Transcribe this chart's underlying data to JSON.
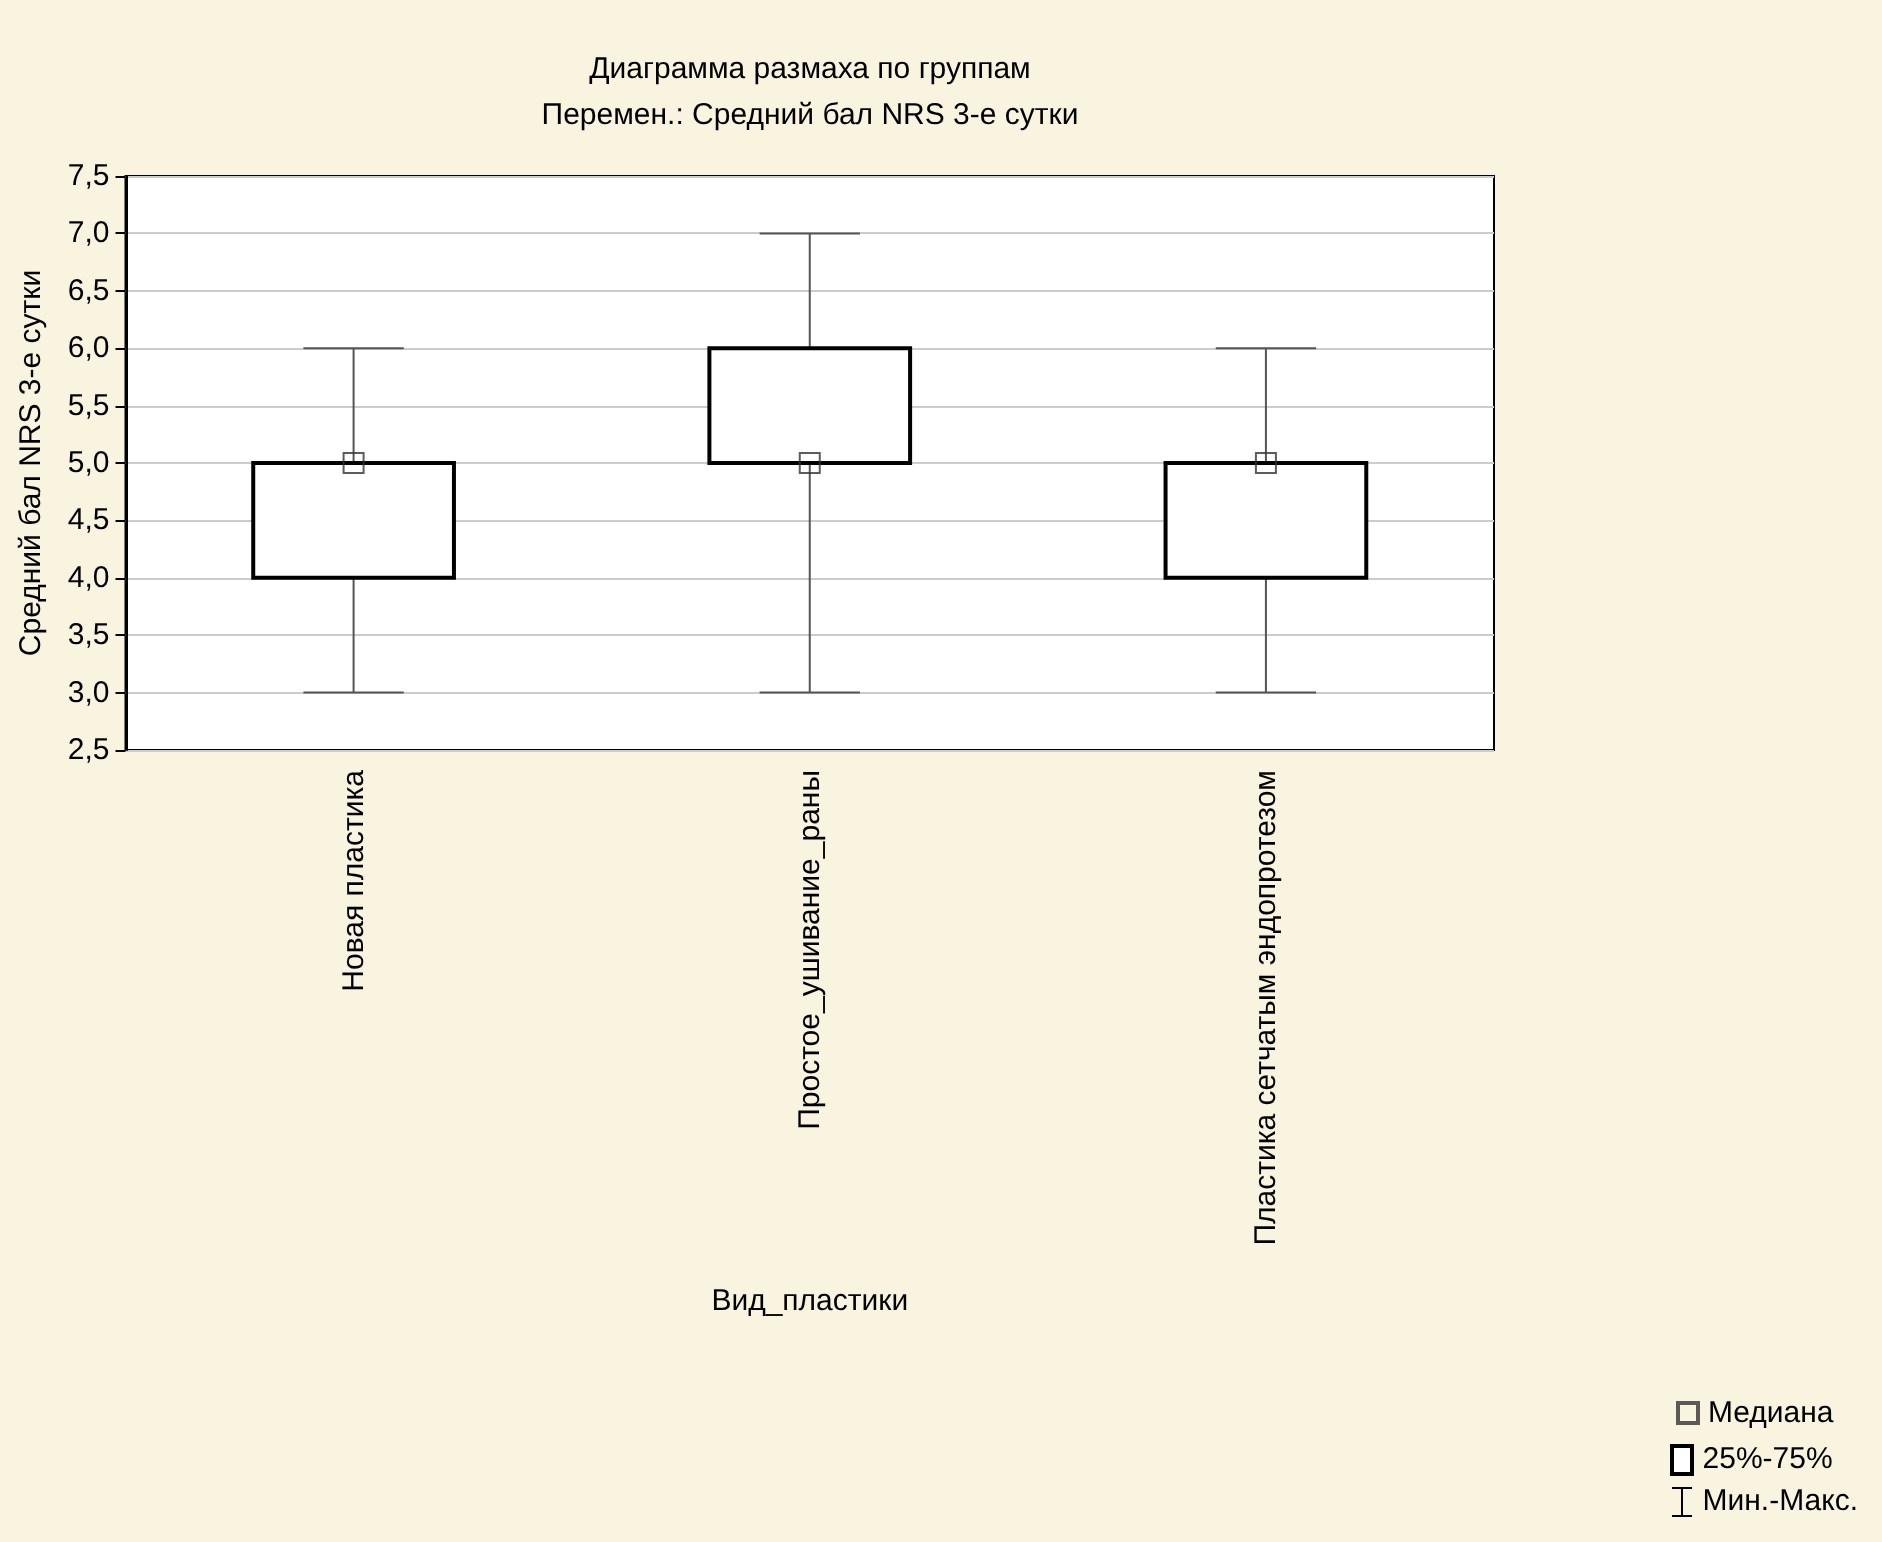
{
  "chart_data": {
    "type": "box",
    "title": "Диаграмма размаха по группам",
    "subtitle": "Перемен.: Средний бал NRS 3-е сутки",
    "xlabel": "Вид_пластики",
    "ylabel": "Средний бал NRS 3-е сутки",
    "categories": [
      "Новая пластика",
      "Простое_ушивание_раны",
      "Пластика сетчатым эндопротезом"
    ],
    "boxes": [
      {
        "low": 3,
        "q1": 4,
        "median": 5,
        "q3": 5,
        "high": 6
      },
      {
        "low": 3,
        "q1": 5,
        "median": 5,
        "q3": 6,
        "high": 7
      },
      {
        "low": 3,
        "q1": 4,
        "median": 5,
        "q3": 5,
        "high": 6
      }
    ],
    "ylim": [
      2.5,
      7.5
    ],
    "yticks": [
      {
        "value": 2.5,
        "label": "2,5"
      },
      {
        "value": 3,
        "label": "3,0"
      },
      {
        "value": 3.5,
        "label": "3,5"
      },
      {
        "value": 4,
        "label": "4,0"
      },
      {
        "value": 4.5,
        "label": "4,5"
      },
      {
        "value": 5,
        "label": "5,0"
      },
      {
        "value": 5.5,
        "label": "5,5"
      },
      {
        "value": 6,
        "label": "6,0"
      },
      {
        "value": 6.5,
        "label": "6,5"
      },
      {
        "value": 7,
        "label": "7,0"
      },
      {
        "value": 7.5,
        "label": "7,5"
      }
    ],
    "series": [
      {
        "type": "scatter",
        "name": "Медиана",
        "color": "#333333",
        "x": [
          "Новая пластика",
          "Простое_ушивание_раны",
          "Пластика сетчатым эндопротезом"
        ],
        "values": [
          5,
          5,
          5
        ]
      }
    ],
    "grid": "y",
    "marker": "square",
    "legend": "bottom right",
    "annotations": [
      "25%-75%",
      "Мин.-Макс."
    ]
  }
}
